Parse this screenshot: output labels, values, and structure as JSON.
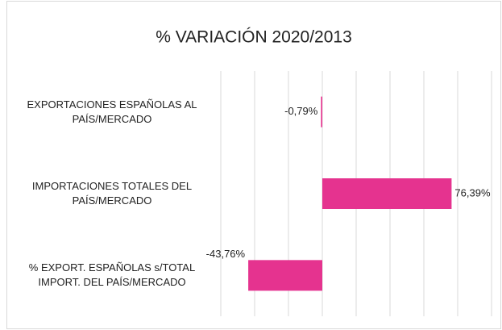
{
  "chart_data": {
    "type": "bar",
    "orientation": "horizontal",
    "title": "% VARIACIÓN 2020/2013",
    "categories": [
      "EXPORTACIONES ESPAÑOLAS AL PAÍS/MERCADO",
      "IMPORTACIONES TOTALES DEL PAÍS/MERCADO",
      "% EXPORT. ESPAÑOLAS s/TOTAL IMPORT. DEL PAÍS/MERCADO"
    ],
    "values": [
      -0.79,
      76.39,
      -43.76
    ],
    "value_labels": [
      "-0,79%",
      "76,39%",
      "-43,76%"
    ],
    "color": "#e5338f",
    "xlim": [
      -60,
      100
    ],
    "xticks": [
      -60,
      -40,
      -20,
      0,
      20,
      40,
      60,
      80,
      100
    ],
    "grid": true
  }
}
